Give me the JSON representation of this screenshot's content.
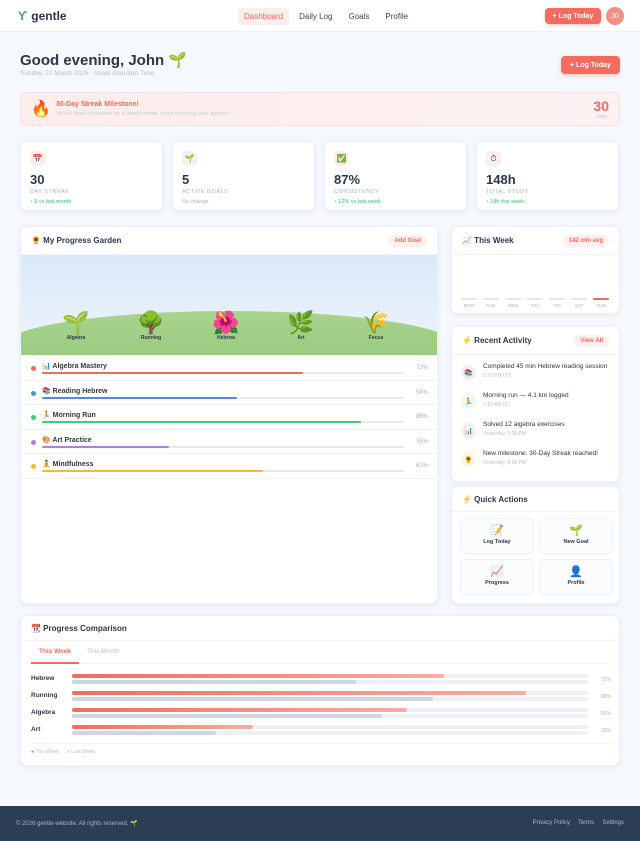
{
  "nav": {
    "logo": "gentle",
    "logo_icon": "sprout-icon",
    "links": [
      "Dashboard",
      "Daily Log",
      "Goals",
      "Profile"
    ],
    "active": "Dashboard",
    "cta": "+ Log Today",
    "avatar": "JD"
  },
  "header": {
    "greeting": "Good evening, John 🌱",
    "date": "Sunday, 22 March 2026 · Israel Standard Time",
    "cta": "+  Log Today"
  },
  "banner": {
    "icon": "🔥",
    "title": "30-Day Streak Milestone!",
    "text": "You've been consistent for a whole month. Keep nurturing your garden!",
    "count": "30",
    "unit": "days"
  },
  "stats": [
    {
      "icon": "📅",
      "value": "30",
      "label": "DAY STREAK",
      "trend": "↑ 5 vs last month"
    },
    {
      "icon": "🌱",
      "value": "5",
      "label": "ACTIVE GOALS",
      "trend": "No change"
    },
    {
      "icon": "✅",
      "value": "87%",
      "label": "CONSISTENCY",
      "trend": "↑ 12% vs last week"
    },
    {
      "icon": "⏱",
      "value": "148h",
      "label": "TOTAL STUDY",
      "trend": "↑ 18h this week"
    }
  ],
  "garden": {
    "title": "🌻  My Progress Garden",
    "add": "Add Goal",
    "plants": [
      {
        "e": "🌱",
        "n": "Algebra"
      },
      {
        "e": "🌳",
        "n": "Running"
      },
      {
        "e": "🌺",
        "n": "Hebrew"
      },
      {
        "e": "🌿",
        "n": "Art"
      },
      {
        "e": "🌾",
        "n": "Focus"
      }
    ],
    "goals": [
      {
        "name": "📊 Algebra Mastery",
        "pct": "72%",
        "value": 72,
        "color": "#f06a5f"
      },
      {
        "name": "📚 Reading Hebrew",
        "pct": "54%",
        "value": 54,
        "color": "#4a90d9"
      },
      {
        "name": "🏃 Morning Run",
        "pct": "88%",
        "value": 88,
        "color": "#3ecf73"
      },
      {
        "name": "🎨 Art Practice",
        "pct": "35%",
        "value": 35,
        "color": "#b77be0"
      },
      {
        "name": "🧘 Mindfulness",
        "pct": "61%",
        "value": 61,
        "color": "#f5b82e"
      }
    ]
  },
  "week": {
    "title": "📈 This Week",
    "avg": "142 min avg",
    "days": [
      "MON",
      "TUE",
      "WED",
      "THU",
      "FRI",
      "SAT",
      "SUN"
    ],
    "today": "SUN"
  },
  "activity": {
    "title": "⚡ Recent Activity",
    "view_all": "View All",
    "items": [
      {
        "icon": "📚",
        "text": "Completed 45 min Hebrew reading session",
        "time": "2:30 PM IST"
      },
      {
        "icon": "🏃",
        "text": "Morning run — 4.1 km logged",
        "time": "7:15 AM IST"
      },
      {
        "icon": "📊",
        "text": "Solved 12 algebra exercises",
        "time": "Yesterday, 9:00 PM"
      },
      {
        "icon": "🌻",
        "text": "New milestone: 30-Day Streak reached!",
        "time": "Yesterday, 8:45 PM"
      }
    ]
  },
  "quick": {
    "title": "⚡ Quick Actions",
    "items": [
      {
        "e": "📝",
        "n": "Log Today"
      },
      {
        "e": "🌱",
        "n": "New Goal"
      },
      {
        "e": "📈",
        "n": "Progress"
      },
      {
        "e": "👤",
        "n": "Profile"
      }
    ]
  },
  "comparison": {
    "title": "📆 Progress Comparison",
    "tabs": [
      "This Week",
      "This Month"
    ],
    "active_tab": "This Week",
    "rows": [
      {
        "label": "Hebrew",
        "this": 72,
        "last": 55,
        "pct": "72%"
      },
      {
        "label": "Running",
        "this": 88,
        "last": 70,
        "pct": "88%"
      },
      {
        "label": "Algebra",
        "this": 65,
        "last": 60,
        "pct": "65%"
      },
      {
        "label": "Art",
        "this": 35,
        "last": 28,
        "pct": "35%"
      }
    ],
    "legend": [
      "This Week",
      "Last Week"
    ]
  },
  "footer": {
    "copy": "© 2026 gentle-website. All rights reserved. 🌱",
    "links": [
      "Privacy Policy",
      "Terms",
      "Settings"
    ]
  }
}
